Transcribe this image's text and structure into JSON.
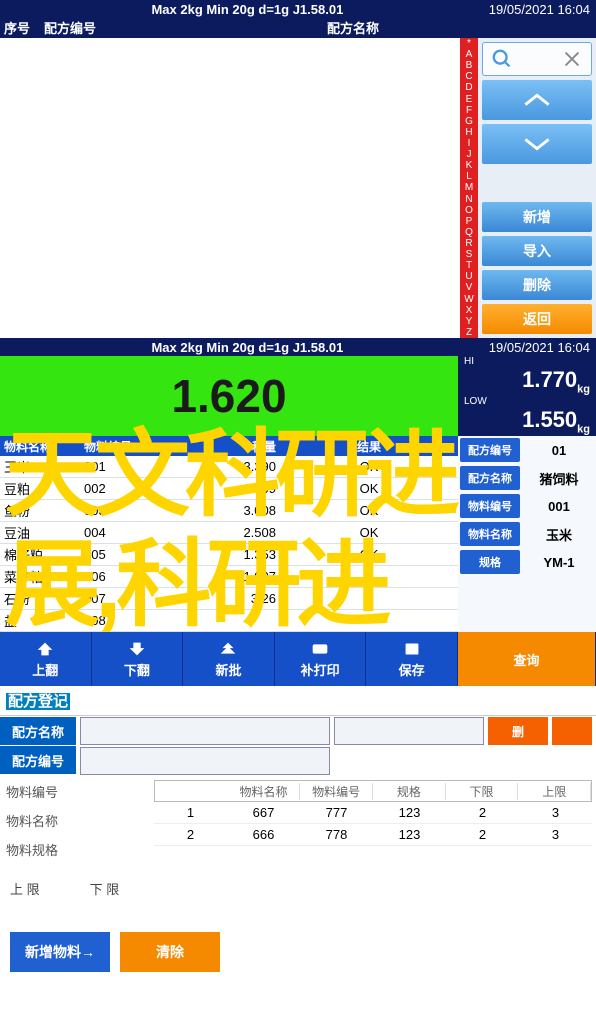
{
  "header": {
    "center": "Max 2kg  Min 20g  d=1g    J1.58.01",
    "datetime": "19/05/2021  16:04"
  },
  "screen1": {
    "cols": {
      "seq": "序号",
      "code": "配方编号",
      "name": "配方名称"
    },
    "alpha": [
      "*",
      "A",
      "B",
      "C",
      "D",
      "E",
      "F",
      "G",
      "H",
      "I",
      "J",
      "K",
      "L",
      "M",
      "N",
      "O",
      "P",
      "Q",
      "R",
      "S",
      "T",
      "U",
      "V",
      "W",
      "X",
      "Y",
      "Z"
    ],
    "search_icon_color": "#4a98e0",
    "x_icon_color": "#888",
    "btn_new": "新增",
    "btn_import": "导入",
    "btn_delete": "删除",
    "btn_back": "返回"
  },
  "screen2": {
    "weight": "1.620",
    "hi_label": "HI",
    "hi_val": "1.770",
    "hi_unit": "kg",
    "low_label": "LOW",
    "low_val": "1.550",
    "low_unit": "kg",
    "thead": {
      "name": "物料名称",
      "code": "物料编号",
      "wt": "称量",
      "res": "结果"
    },
    "rows": [
      {
        "name": "玉米",
        "code": "001",
        "wt": "63.390",
        "res": "OK"
      },
      {
        "name": "豆粕",
        "code": "002",
        "wt": "1.009",
        "res": "OK"
      },
      {
        "name": "鱼粉",
        "code": "003",
        "wt": "3.008",
        "res": "OK"
      },
      {
        "name": "豆油",
        "code": "004",
        "wt": "2.508",
        "res": "OK"
      },
      {
        "name": "棉籽粕",
        "code": "005",
        "wt": "1.353",
        "res": "OK"
      },
      {
        "name": "菜籽粕",
        "code": "006",
        "wt": "1.007",
        "res": ""
      },
      {
        "name": "石粉",
        "code": "007",
        "wt": "3.26",
        "res": ""
      },
      {
        "name": "盐",
        "code": "008",
        "wt": "",
        "res": ""
      }
    ],
    "right": [
      {
        "label": "配方编号",
        "val": "01"
      },
      {
        "label": "配方名称",
        "val": "猪饲料"
      },
      {
        "label": "物料编号",
        "val": "001"
      },
      {
        "label": "物料名称",
        "val": "玉米"
      },
      {
        "label": "规格",
        "val": "YM-1"
      }
    ],
    "footer": {
      "up": "上翻",
      "down": "下翻",
      "newbatch": "新批",
      "reprint": "补打印",
      "save": "保存",
      "query": "查询"
    }
  },
  "screen3": {
    "title": "配方登记",
    "label_name": "配方名称",
    "label_code": "配方编号",
    "btn_del": "删",
    "left_labels": [
      "物料编号",
      "物料名称",
      "物料规格"
    ],
    "thead": [
      "物料名称",
      "物料编号",
      "规格",
      "下限",
      "上限"
    ],
    "rows": [
      [
        "1",
        "667",
        "777",
        "123",
        "2",
        "3"
      ],
      [
        "2",
        "666",
        "778",
        "123",
        "2",
        "3"
      ]
    ],
    "limit_up": "上 限",
    "limit_down": "下 限",
    "btn_add": "新增物料→",
    "btn_clear": "清除"
  },
  "watermark": {
    "line1": "天文科研进",
    "line2": "展,科研进"
  }
}
